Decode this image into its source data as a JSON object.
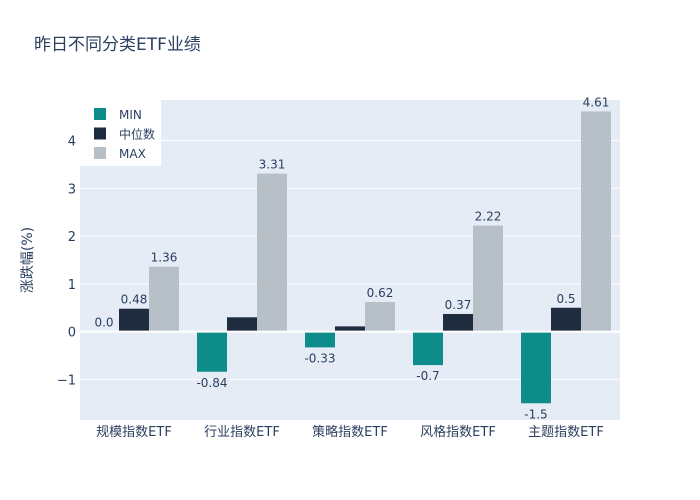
{
  "chart_data": {
    "type": "bar",
    "title": "昨日不同分类ETF业绩",
    "xlabel": "",
    "ylabel": "涨跌幅(%)",
    "categories": [
      "规模指数ETF",
      "行业指数ETF",
      "策略指数ETF",
      "风格指数ETF",
      "主题指数ETF"
    ],
    "ylim": [
      -1.85,
      4.85
    ],
    "yticks": [
      -1,
      0,
      1,
      2,
      3,
      4
    ],
    "ytick_labels": [
      "−1",
      "0",
      "1",
      "2",
      "3",
      "4"
    ],
    "grid": true,
    "legend_position": "top-left",
    "series": [
      {
        "name": "MIN",
        "color": "#0d8c8a",
        "values": [
          0.0,
          -0.84,
          -0.33,
          -0.7,
          -1.5
        ],
        "labels": [
          "0.0",
          "-0.84",
          "-0.33",
          "-0.7",
          "-1.5"
        ]
      },
      {
        "name": "中位数",
        "color": "#1f2b3e",
        "values": [
          0.48,
          0.3,
          0.11,
          0.37,
          0.5
        ],
        "labels": [
          "0.48",
          "",
          "",
          "0.37",
          "0.5"
        ]
      },
      {
        "name": "MAX",
        "color": "#b7bfc7",
        "values": [
          1.36,
          3.31,
          0.62,
          2.22,
          4.61
        ],
        "labels": [
          "1.36",
          "3.31",
          "0.62",
          "2.22",
          "4.61"
        ]
      }
    ]
  }
}
